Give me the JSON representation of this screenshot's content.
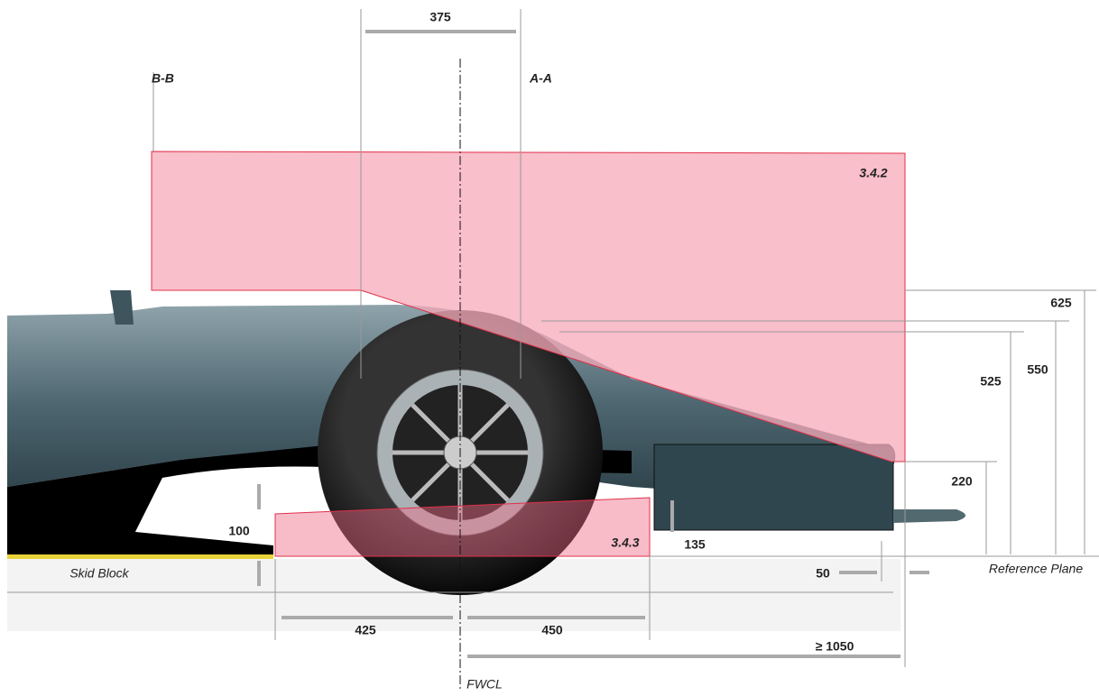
{
  "sections": {
    "left": "B-B",
    "right": "A-A"
  },
  "zones": {
    "upper": "3.4.2",
    "lower": "3.4.3"
  },
  "dimensions": {
    "top_width": "375",
    "height_max": "625",
    "height_550": "550",
    "height_525": "525",
    "height_220": "220",
    "height_100": "100",
    "height_135": "135",
    "offset_50": "50",
    "rear_425": "425",
    "front_450": "450",
    "front_min": "≥ 1050"
  },
  "labels": {
    "skid_block": "Skid Block",
    "reference_plane": "Reference Plane",
    "centerline": "FWCL"
  }
}
